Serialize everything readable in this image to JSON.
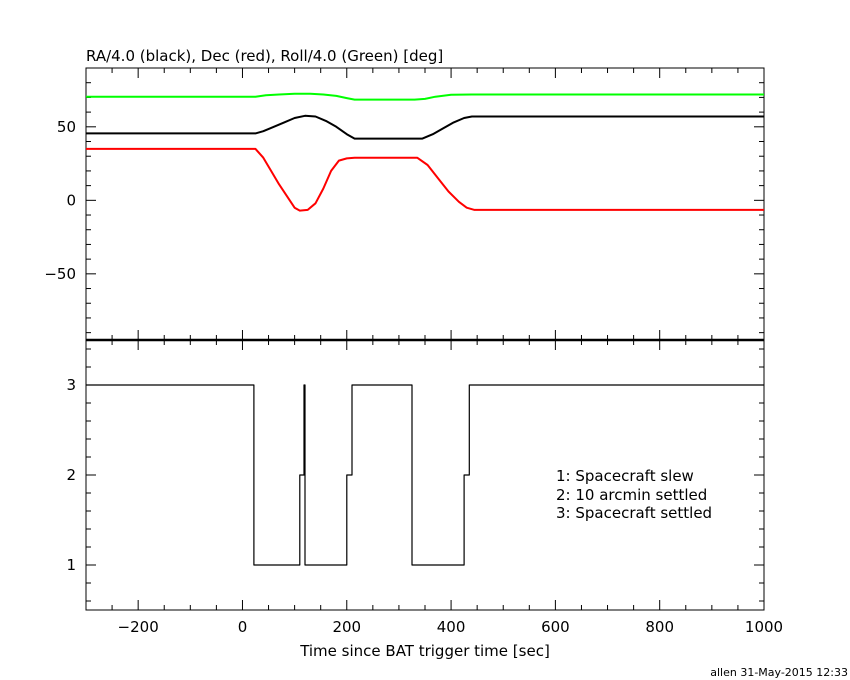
{
  "chart_data": [
    {
      "type": "line",
      "title": "RA/4.0 (black), Dec (red), Roll/4.0 (Green) [deg]",
      "xlim": [
        -300,
        1000
      ],
      "ylim": [
        -95,
        90
      ],
      "yticks": [
        -50,
        0,
        50
      ],
      "grid": false,
      "series": [
        {
          "name": "RA/4.0",
          "color": "#000000",
          "x": [
            -300,
            25,
            40,
            60,
            80,
            100,
            120,
            140,
            160,
            180,
            200,
            215,
            240,
            330,
            345,
            365,
            385,
            405,
            425,
            440,
            1000
          ],
          "y": [
            45.5,
            45.5,
            47,
            50,
            53,
            56,
            57.5,
            57,
            54,
            50,
            45,
            42,
            42,
            42,
            42,
            45,
            49,
            53,
            56,
            57,
            57
          ]
        },
        {
          "name": "Dec",
          "color": "#ff0000",
          "x": [
            -300,
            25,
            40,
            55,
            70,
            85,
            100,
            110,
            125,
            140,
            155,
            170,
            185,
            200,
            215,
            240,
            335,
            355,
            375,
            395,
            415,
            430,
            445,
            1000
          ],
          "y": [
            35,
            35,
            29,
            20,
            11,
            3,
            -5,
            -7,
            -6.5,
            -2,
            8,
            20,
            27,
            28.5,
            29,
            29,
            29,
            24,
            15,
            6,
            -1,
            -5,
            -6.5,
            -6.5
          ]
        },
        {
          "name": "Roll/4.0",
          "color": "#00ff00",
          "x": [
            -300,
            25,
            45,
            70,
            100,
            130,
            155,
            180,
            200,
            215,
            240,
            330,
            350,
            370,
            400,
            440,
            1000
          ],
          "y": [
            70.5,
            70.5,
            71.5,
            72,
            72.5,
            72.5,
            72,
            71,
            69.5,
            68.5,
            68.5,
            68.5,
            69,
            70.5,
            71.8,
            72,
            72
          ]
        }
      ]
    },
    {
      "type": "line",
      "step": true,
      "xlabel": "Time since BAT trigger time [sec]",
      "xlim": [
        -300,
        1000
      ],
      "ylim": [
        0.5,
        3.5
      ],
      "xticks": [
        -200,
        0,
        200,
        400,
        600,
        800,
        1000
      ],
      "yticks": [
        1,
        2,
        3
      ],
      "grid": false,
      "legend_placement": "lower-right",
      "annotations": [
        "1: Spacecraft slew",
        "2: 10 arcmin settled",
        "3: Spacecraft settled"
      ],
      "series": [
        {
          "color": "#000000",
          "x": [
            -300,
            22,
            22,
            110,
            110,
            118,
            118,
            120,
            120,
            122,
            122,
            200,
            200,
            210,
            210,
            325,
            325,
            425,
            425,
            435,
            435,
            1000
          ],
          "y": [
            3,
            3,
            1,
            1,
            2,
            2,
            3,
            3,
            1,
            1,
            1,
            1,
            2,
            2,
            3,
            3,
            1,
            1,
            2,
            2,
            3,
            3
          ]
        }
      ]
    }
  ],
  "footer": {
    "stamp": "allen 31-May-2015 12:33"
  }
}
